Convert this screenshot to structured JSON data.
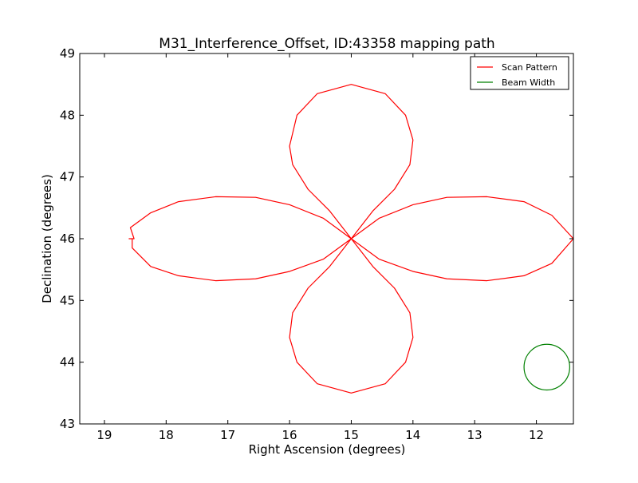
{
  "chart_data": {
    "type": "line",
    "title": "M31_Interference_Offset, ID:43358 mapping path",
    "xlabel": "Right Ascension (degrees)",
    "ylabel": "Declination (degrees)",
    "xlim": [
      19.4,
      11.4
    ],
    "ylim": [
      43,
      49
    ],
    "x_inverted": true,
    "grid": false,
    "legend_position": "top-right",
    "xticks": [
      19,
      18,
      17,
      16,
      15,
      14,
      13,
      12
    ],
    "yticks": [
      43,
      44,
      45,
      46,
      47,
      48,
      49
    ],
    "series": [
      {
        "name": "Scan Pattern",
        "color": "#ff0000",
        "shape": "four-lobed rose pattern centered at RA 15, Dec 46",
        "center": [
          15.0,
          46.0
        ],
        "points": [
          [
            15.0,
            46.0
          ],
          [
            14.55,
            46.33
          ],
          [
            14.0,
            46.55
          ],
          [
            13.45,
            46.67
          ],
          [
            12.8,
            46.68
          ],
          [
            12.2,
            46.6
          ],
          [
            11.75,
            46.38
          ],
          [
            11.4,
            46.0
          ],
          [
            11.75,
            45.6
          ],
          [
            12.2,
            45.4
          ],
          [
            12.8,
            45.32
          ],
          [
            13.45,
            45.35
          ],
          [
            14.0,
            45.47
          ],
          [
            14.55,
            45.67
          ],
          [
            15.0,
            46.0
          ],
          [
            14.65,
            45.55
          ],
          [
            14.3,
            45.2
          ],
          [
            14.05,
            44.8
          ],
          [
            14.0,
            44.4
          ],
          [
            14.12,
            44.0
          ],
          [
            14.45,
            43.65
          ],
          [
            15.0,
            43.5
          ],
          [
            15.55,
            43.65
          ],
          [
            15.88,
            44.0
          ],
          [
            16.0,
            44.4
          ],
          [
            15.95,
            44.8
          ],
          [
            15.7,
            45.2
          ],
          [
            15.35,
            45.55
          ],
          [
            15.0,
            46.0
          ],
          [
            15.45,
            45.67
          ],
          [
            16.0,
            45.47
          ],
          [
            16.55,
            45.35
          ],
          [
            17.2,
            45.32
          ],
          [
            17.8,
            45.4
          ],
          [
            18.25,
            45.55
          ],
          [
            18.55,
            45.85
          ],
          [
            18.55,
            46.0
          ],
          [
            18.6,
            46.0
          ],
          [
            18.52,
            46.0
          ],
          [
            18.58,
            46.18
          ],
          [
            18.25,
            46.42
          ],
          [
            17.8,
            46.6
          ],
          [
            17.2,
            46.68
          ],
          [
            16.55,
            46.67
          ],
          [
            16.0,
            46.55
          ],
          [
            15.45,
            46.33
          ],
          [
            15.0,
            46.0
          ],
          [
            15.35,
            46.45
          ],
          [
            15.7,
            46.8
          ],
          [
            15.95,
            47.2
          ],
          [
            16.0,
            47.5
          ],
          [
            15.88,
            48.0
          ],
          [
            15.55,
            48.35
          ],
          [
            15.0,
            48.5
          ],
          [
            14.45,
            48.35
          ],
          [
            14.12,
            48.0
          ],
          [
            14.0,
            47.6
          ],
          [
            14.05,
            47.2
          ],
          [
            14.3,
            46.8
          ],
          [
            14.65,
            46.45
          ],
          [
            15.0,
            46.0
          ]
        ]
      },
      {
        "name": "Beam Width",
        "color": "#008000",
        "shape": "circle",
        "center": [
          11.83,
          43.92
        ],
        "radius_ra": 0.37,
        "radius_dec": 0.37
      }
    ]
  }
}
